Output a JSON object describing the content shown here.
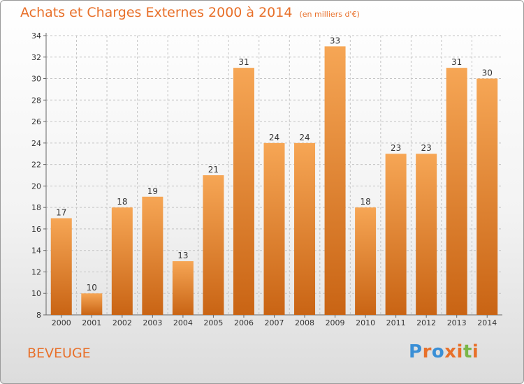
{
  "header": {
    "title": "Achats et Charges Externes 2000 à 2014",
    "unit": "(en milliers d'€)"
  },
  "commune": "BEVEUGE",
  "logo": {
    "text": "Proxiti",
    "colors": [
      "#3a8fd6",
      "#e8702a",
      "#3a8fd6",
      "#e8702a",
      "#e8702a",
      "#7ab648",
      "#e8702a"
    ]
  },
  "colors": {
    "bar_top": "#f6a655",
    "bar_bottom": "#c96414",
    "accent": "#e8702a"
  },
  "chart_data": {
    "type": "bar",
    "title": "Achats et Charges Externes 2000 à 2014",
    "subtitle": "(en milliers d'€)",
    "xlabel": "",
    "ylabel": "",
    "categories": [
      "2000",
      "2001",
      "2002",
      "2003",
      "2004",
      "2005",
      "2006",
      "2007",
      "2008",
      "2009",
      "2010",
      "2011",
      "2012",
      "2013",
      "2014"
    ],
    "values": [
      17,
      10,
      18,
      19,
      13,
      21,
      31,
      24,
      24,
      33,
      18,
      23,
      23,
      31,
      30
    ],
    "data_labels": [
      "17",
      "10",
      "18",
      "19",
      "13",
      "21",
      "31",
      "24",
      "24",
      "33",
      "18",
      "23",
      "23",
      "31",
      "30"
    ],
    "ylim": [
      8,
      34
    ],
    "yticks": [
      8,
      10,
      12,
      14,
      16,
      18,
      20,
      22,
      24,
      26,
      28,
      30,
      32,
      34
    ],
    "grid": true
  }
}
